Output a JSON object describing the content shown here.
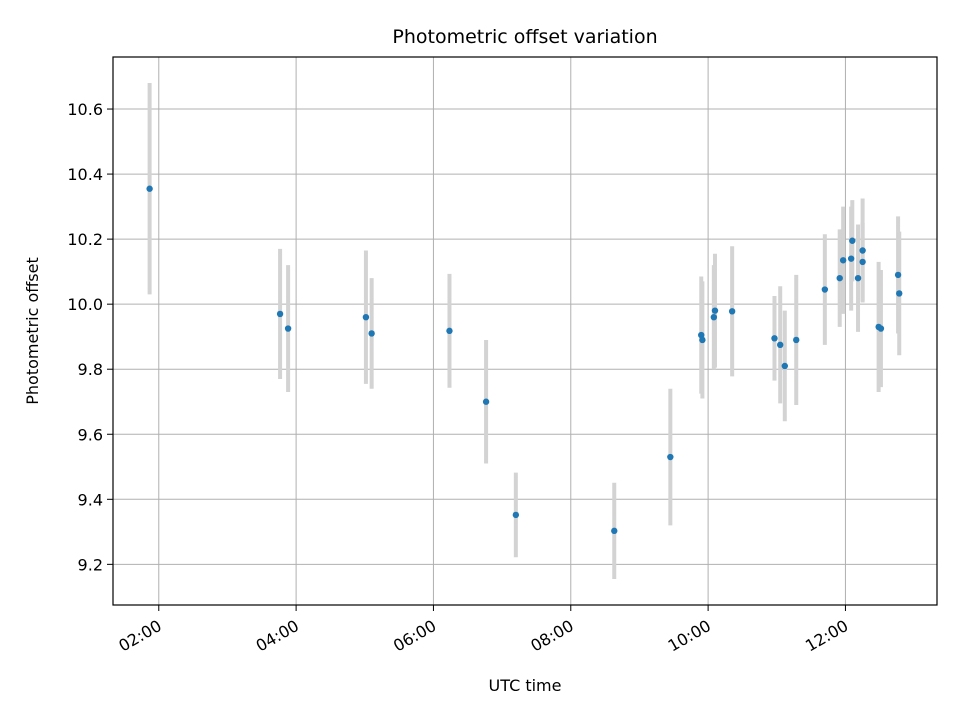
{
  "chart_data": {
    "type": "scatter",
    "title": "Photometric offset variation",
    "xlabel": "UTC time",
    "ylabel": "Photometric offset",
    "x_ticks": [
      "02:00",
      "04:00",
      "06:00",
      "08:00",
      "10:00",
      "12:00"
    ],
    "y_ticks": [
      "9.2",
      "9.4",
      "9.6",
      "9.8",
      "10.0",
      "10.2",
      "10.4",
      "10.6"
    ],
    "xlim": [
      "01:20",
      "13:20"
    ],
    "ylim": [
      9.075,
      10.76
    ],
    "grid": true,
    "colors": {
      "point": "#1f77b4",
      "errorbar": "#d3d3d3",
      "grid": "#b0b0b0"
    },
    "points": [
      {
        "x": "01:52",
        "y": 10.355,
        "err": 0.325
      },
      {
        "x": "03:46",
        "y": 9.97,
        "err": 0.2
      },
      {
        "x": "03:53",
        "y": 9.925,
        "err": 0.195
      },
      {
        "x": "05:01",
        "y": 9.96,
        "err": 0.205
      },
      {
        "x": "05:06",
        "y": 9.91,
        "err": 0.17
      },
      {
        "x": "06:14",
        "y": 9.918,
        "err": 0.175
      },
      {
        "x": "06:46",
        "y": 9.7,
        "err": 0.19
      },
      {
        "x": "07:12",
        "y": 9.352,
        "err": 0.13
      },
      {
        "x": "08:38",
        "y": 9.303,
        "err": 0.148
      },
      {
        "x": "09:27",
        "y": 9.53,
        "err": 0.21
      },
      {
        "x": "09:54",
        "y": 9.905,
        "err": 0.18
      },
      {
        "x": "09:55",
        "y": 9.89,
        "err": 0.18
      },
      {
        "x": "10:05",
        "y": 9.96,
        "err": 0.16
      },
      {
        "x": "10:06",
        "y": 9.98,
        "err": 0.175
      },
      {
        "x": "10:21",
        "y": 9.978,
        "err": 0.2
      },
      {
        "x": "10:58",
        "y": 9.895,
        "err": 0.13
      },
      {
        "x": "11:03",
        "y": 9.875,
        "err": 0.18
      },
      {
        "x": "11:07",
        "y": 9.81,
        "err": 0.17
      },
      {
        "x": "11:17",
        "y": 9.89,
        "err": 0.2
      },
      {
        "x": "11:42",
        "y": 10.045,
        "err": 0.17
      },
      {
        "x": "11:55",
        "y": 10.08,
        "err": 0.15
      },
      {
        "x": "11:58",
        "y": 10.135,
        "err": 0.165
      },
      {
        "x": "12:05",
        "y": 10.14,
        "err": 0.16
      },
      {
        "x": "12:06",
        "y": 10.195,
        "err": 0.125
      },
      {
        "x": "12:11",
        "y": 10.08,
        "err": 0.165
      },
      {
        "x": "12:15",
        "y": 10.165,
        "err": 0.16
      },
      {
        "x": "12:15",
        "y": 10.13,
        "err": 0.12
      },
      {
        "x": "12:29",
        "y": 9.93,
        "err": 0.2
      },
      {
        "x": "12:31",
        "y": 9.925,
        "err": 0.18
      },
      {
        "x": "12:46",
        "y": 10.09,
        "err": 0.18
      },
      {
        "x": "12:47",
        "y": 10.033,
        "err": 0.19
      }
    ]
  }
}
